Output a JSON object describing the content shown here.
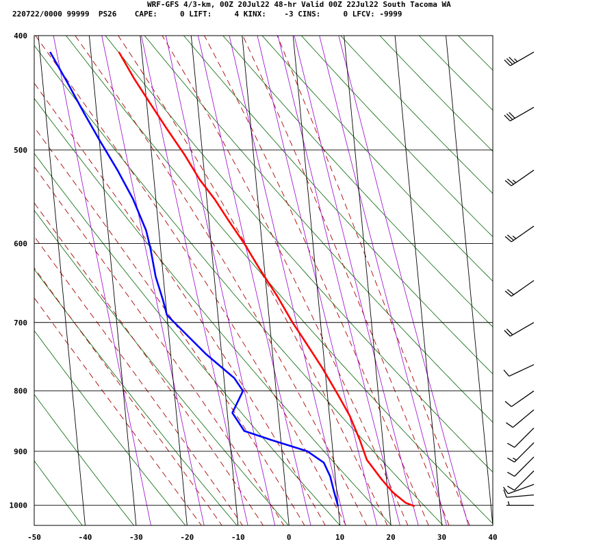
{
  "header": {
    "line1": "WRF-GFS 4/3-km, 00Z 20Jul22 48-hr Valid 00Z 22Jul22 South Tacoma WA",
    "line2": "220722/0000 99999  PS26    CAPE:     0 LIFT:     4 KINX:    -3 CINS:     0 LFCV: -9999"
  },
  "chart_data": {
    "type": "line",
    "title": "",
    "xlabel": "",
    "ylabel": "",
    "xlim": [
      -50,
      40
    ],
    "ylim": [
      1040,
      400
    ],
    "y_scale": "log",
    "x_ticks": [
      -50,
      -40,
      -30,
      -20,
      -10,
      0,
      10,
      20,
      30,
      40
    ],
    "y_ticks": [
      400,
      500,
      600,
      700,
      800,
      900,
      1000
    ],
    "grid": true,
    "series": [
      {
        "color": "#ff0000",
        "x": [
          25,
          23.3,
          21,
          19,
          16.5,
          15.5,
          14,
          12,
          9.5,
          6.5,
          4.5,
          2,
          -1,
          -3.5,
          -6,
          -8.5,
          -11,
          -13.5,
          -16.5,
          -19.5,
          -22,
          -24.5
        ],
        "y": [
          1002,
          995,
          975,
          950,
          915,
          880,
          840,
          805,
          765,
          725,
          700,
          665,
          630,
          600,
          575,
          550,
          530,
          505,
          480,
          455,
          435,
          413
        ]
      },
      {
        "color": "#0000ff",
        "x": [
          10,
          9.5,
          9,
          8,
          5,
          -2,
          -7,
          -9,
          -6.5,
          -8,
          -13,
          -20,
          -20.5,
          -21.5,
          -22,
          -22.5,
          -24.5,
          -27,
          -30,
          -32.5,
          -35,
          -38
        ],
        "y": [
          1002,
          975,
          945,
          920,
          900,
          880,
          865,
          835,
          800,
          780,
          745,
          690,
          670,
          640,
          605,
          585,
          550,
          520,
          490,
          465,
          440,
          413
        ]
      }
    ],
    "wind_barbs": [
      {
        "p": 413,
        "dir": 240,
        "kt": 35
      },
      {
        "p": 460,
        "dir": 240,
        "kt": 30
      },
      {
        "p": 520,
        "dir": 235,
        "kt": 25
      },
      {
        "p": 580,
        "dir": 235,
        "kt": 25
      },
      {
        "p": 645,
        "dir": 235,
        "kt": 20
      },
      {
        "p": 700,
        "dir": 240,
        "kt": 20
      },
      {
        "p": 760,
        "dir": 245,
        "kt": 10
      },
      {
        "p": 800,
        "dir": 235,
        "kt": 10
      },
      {
        "p": 830,
        "dir": 230,
        "kt": 10
      },
      {
        "p": 860,
        "dir": 225,
        "kt": 10
      },
      {
        "p": 885,
        "dir": 225,
        "kt": 15
      },
      {
        "p": 910,
        "dir": 225,
        "kt": 10
      },
      {
        "p": 935,
        "dir": 225,
        "kt": 10
      },
      {
        "p": 960,
        "dir": 250,
        "kt": 10
      },
      {
        "p": 980,
        "dir": 265,
        "kt": 10
      },
      {
        "p": 1000,
        "dir": 270,
        "kt": 5
      }
    ],
    "colors": {
      "dry_adiabat": "#006400",
      "moist_adiabat": "#aa0000",
      "mixing_ratio": "#9900cc",
      "frame": "#000000"
    }
  }
}
